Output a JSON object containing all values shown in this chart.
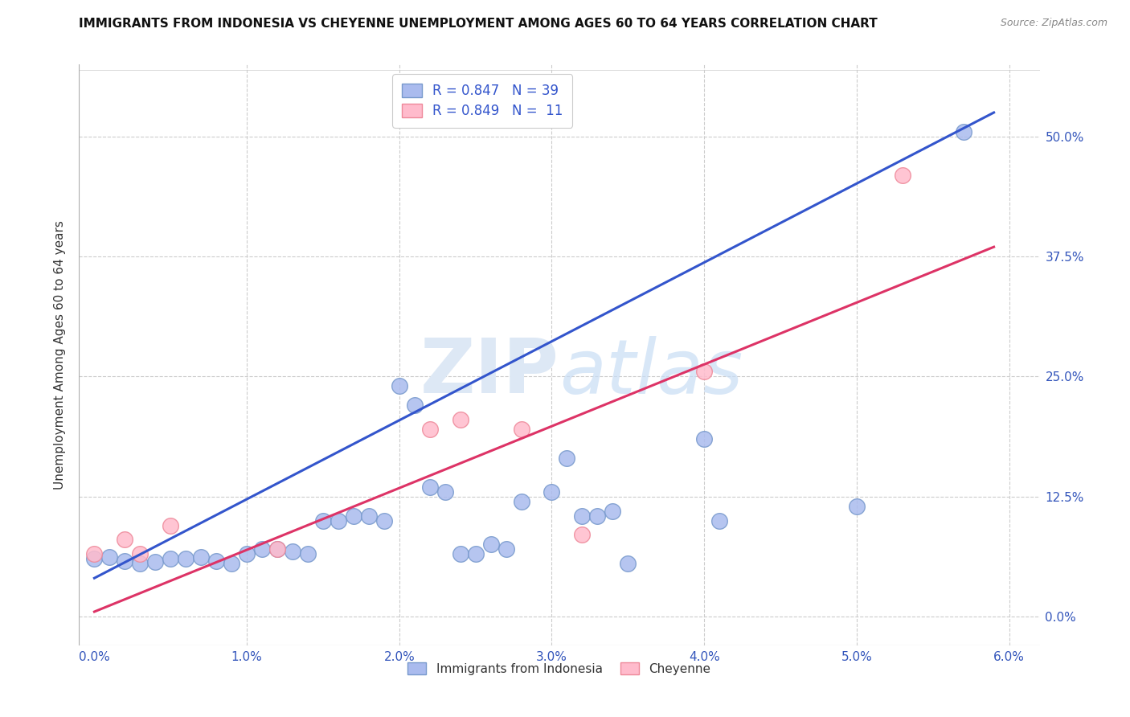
{
  "title": "IMMIGRANTS FROM INDONESIA VS CHEYENNE UNEMPLOYMENT AMONG AGES 60 TO 64 YEARS CORRELATION CHART",
  "source": "Source: ZipAtlas.com",
  "ylabel_label": "Unemployment Among Ages 60 to 64 years",
  "legend_entry1": {
    "R": "0.847",
    "N": "39",
    "label": "Immigrants from Indonesia"
  },
  "legend_entry2": {
    "R": "0.849",
    "N": "11",
    "label": "Cheyenne"
  },
  "blue_scatter_x": [
    0.0,
    0.001,
    0.002,
    0.003,
    0.004,
    0.005,
    0.006,
    0.007,
    0.008,
    0.009,
    0.01,
    0.011,
    0.012,
    0.013,
    0.014,
    0.015,
    0.016,
    0.017,
    0.018,
    0.019,
    0.02,
    0.021,
    0.022,
    0.023,
    0.024,
    0.025,
    0.026,
    0.027,
    0.028,
    0.03,
    0.031,
    0.032,
    0.033,
    0.034,
    0.035,
    0.04,
    0.041,
    0.05,
    0.057
  ],
  "blue_scatter_y": [
    0.06,
    0.062,
    0.058,
    0.055,
    0.057,
    0.06,
    0.06,
    0.062,
    0.058,
    0.055,
    0.065,
    0.07,
    0.07,
    0.068,
    0.065,
    0.1,
    0.1,
    0.105,
    0.105,
    0.1,
    0.24,
    0.22,
    0.135,
    0.13,
    0.065,
    0.065,
    0.075,
    0.07,
    0.12,
    0.13,
    0.165,
    0.105,
    0.105,
    0.11,
    0.055,
    0.185,
    0.1,
    0.115,
    0.505
  ],
  "pink_scatter_x": [
    0.0,
    0.002,
    0.003,
    0.005,
    0.012,
    0.022,
    0.024,
    0.028,
    0.032,
    0.04,
    0.053
  ],
  "pink_scatter_y": [
    0.065,
    0.08,
    0.065,
    0.095,
    0.07,
    0.195,
    0.205,
    0.195,
    0.085,
    0.255,
    0.46
  ],
  "blue_line_x": [
    0.0,
    0.059
  ],
  "blue_line_y": [
    0.04,
    0.525
  ],
  "pink_line_x": [
    0.0,
    0.059
  ],
  "pink_line_y": [
    0.005,
    0.385
  ],
  "blue_color": "#3355cc",
  "pink_color": "#dd3366",
  "blue_scatter_facecolor": "#aabbee",
  "blue_scatter_edgecolor": "#7799cc",
  "pink_scatter_facecolor": "#ffbbcc",
  "pink_scatter_edgecolor": "#ee8899",
  "watermark_color": "#dde8f5",
  "background_color": "#ffffff",
  "xlim": [
    -0.001,
    0.062
  ],
  "ylim": [
    -0.03,
    0.575
  ],
  "x_tick_vals": [
    0.0,
    0.01,
    0.02,
    0.03,
    0.04,
    0.05,
    0.06
  ],
  "x_tick_labels": [
    "0.0%",
    "1.0%",
    "2.0%",
    "3.0%",
    "4.0%",
    "5.0%",
    "6.0%"
  ],
  "y_tick_vals": [
    0.0,
    0.125,
    0.25,
    0.375,
    0.5
  ],
  "y_tick_labels": [
    "0.0%",
    "12.5%",
    "25.0%",
    "37.5%",
    "50.0%"
  ],
  "grid_color": "#cccccc",
  "tick_label_color": "#3355bb",
  "title_color": "#111111",
  "source_color": "#888888",
  "ylabel_color": "#333333"
}
